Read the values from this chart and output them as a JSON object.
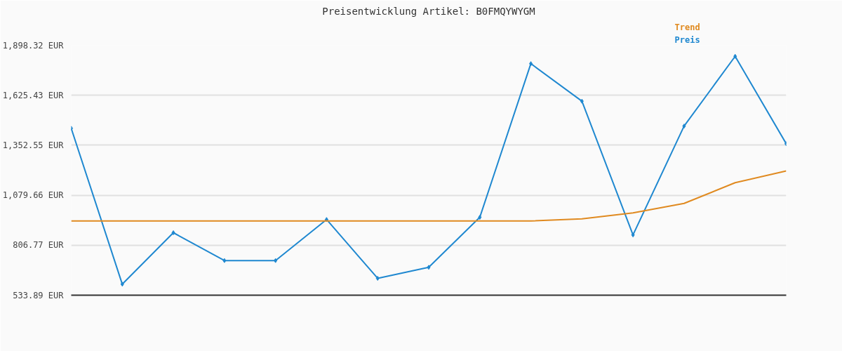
{
  "chart_data": {
    "type": "line",
    "title": "Preisentwicklung Artikel: B0FMQYWYGM",
    "categories": [
      null,
      null,
      null,
      null,
      null,
      null,
      null,
      null,
      null,
      null,
      null,
      null,
      null,
      null,
      null
    ],
    "series": [
      {
        "name": "Preis",
        "color": "#1f88d0",
        "marker": "diamond",
        "values": [
          1445,
          594,
          875,
          723,
          723,
          947,
          626,
          686,
          959,
          1798,
          1593,
          863,
          1457,
          1838,
          1361
        ]
      },
      {
        "name": "Trend",
        "color": "#e08a20",
        "marker": "none",
        "values": [
          939,
          939,
          939,
          939,
          939,
          939,
          939,
          939,
          939,
          939,
          951,
          983,
          1035,
          1148,
          1212
        ]
      }
    ],
    "ylim": [
      533.89,
      1898.32
    ],
    "yticks": [
      {
        "value": 533.89,
        "label": "533.89 EUR"
      },
      {
        "value": 806.77,
        "label": "806.77 EUR"
      },
      {
        "value": 1079.66,
        "label": "1,079.66 EUR"
      },
      {
        "value": 1352.55,
        "label": "1,352.55 EUR"
      },
      {
        "value": 1625.43,
        "label": "1,625.43 EUR"
      },
      {
        "value": 1898.32,
        "label": "1,898.32 EUR"
      }
    ],
    "grid": "y"
  }
}
